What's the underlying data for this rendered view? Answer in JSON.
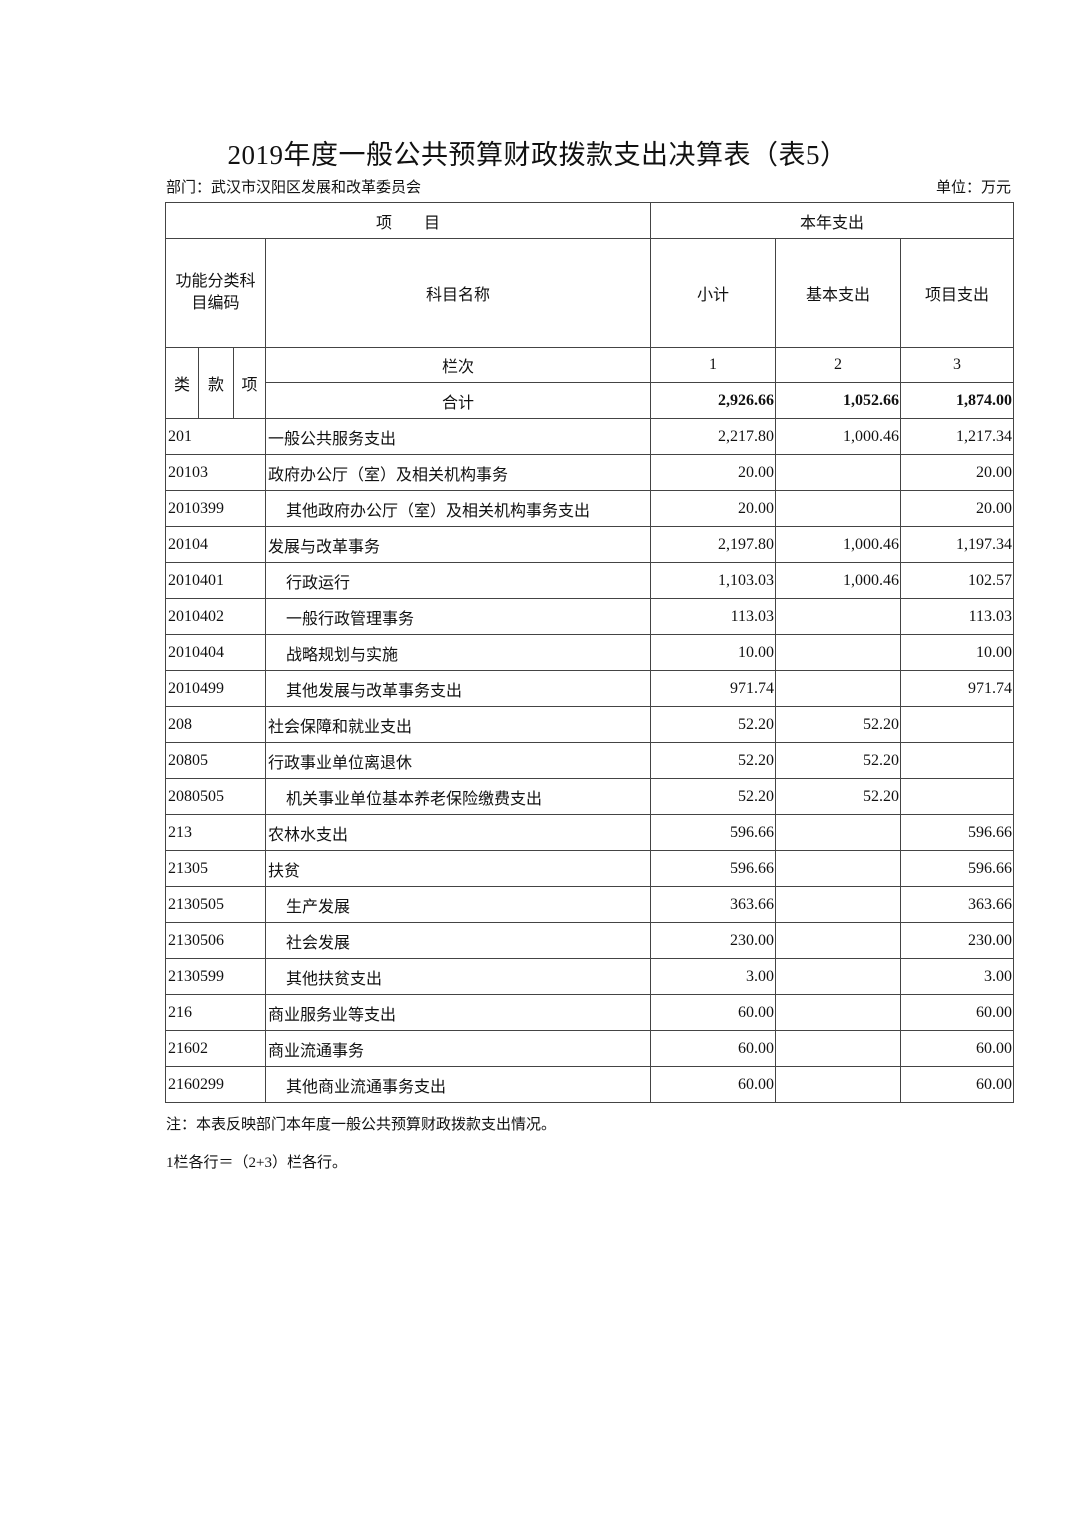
{
  "title": "2019年度一般公共预算财政拨款支出决算表（表5）",
  "department": "部门：武汉市汉阳区发展和改革委员会",
  "unit": "单位：万元",
  "header": {
    "item": "项　　目",
    "current_year": "本年支出",
    "code_label": "功能分类科目编码",
    "name_label": "科目名称",
    "subtotal": "小计",
    "basic": "基本支出",
    "project": "项目支出",
    "lei": "类",
    "kuan": "款",
    "xiang": "项",
    "column_no": "栏次",
    "col1": "1",
    "col2": "2",
    "col3": "3",
    "total_label": "合计",
    "total_subtotal": "2,926.66",
    "total_basic": "1,052.66",
    "total_project": "1,874.00"
  },
  "rows": [
    {
      "code": "201",
      "name": "一般公共服务支出",
      "subtotal": "2,217.80",
      "basic": "1,000.46",
      "project": "1,217.34",
      "indent": false
    },
    {
      "code": "20103",
      "name": "政府办公厅（室）及相关机构事务",
      "subtotal": "20.00",
      "basic": "",
      "project": "20.00",
      "indent": false
    },
    {
      "code": "2010399",
      "name": "其他政府办公厅（室）及相关机构事务支出",
      "subtotal": "20.00",
      "basic": "",
      "project": "20.00",
      "indent": true
    },
    {
      "code": "20104",
      "name": "发展与改革事务",
      "subtotal": "2,197.80",
      "basic": "1,000.46",
      "project": "1,197.34",
      "indent": false
    },
    {
      "code": "2010401",
      "name": "行政运行",
      "subtotal": "1,103.03",
      "basic": "1,000.46",
      "project": "102.57",
      "indent": true
    },
    {
      "code": "2010402",
      "name": "一般行政管理事务",
      "subtotal": "113.03",
      "basic": "",
      "project": "113.03",
      "indent": true
    },
    {
      "code": "2010404",
      "name": "战略规划与实施",
      "subtotal": "10.00",
      "basic": "",
      "project": "10.00",
      "indent": true
    },
    {
      "code": "2010499",
      "name": "其他发展与改革事务支出",
      "subtotal": "971.74",
      "basic": "",
      "project": "971.74",
      "indent": true
    },
    {
      "code": "208",
      "name": "社会保障和就业支出",
      "subtotal": "52.20",
      "basic": "52.20",
      "project": "",
      "indent": false
    },
    {
      "code": "20805",
      "name": "行政事业单位离退休",
      "subtotal": "52.20",
      "basic": "52.20",
      "project": "",
      "indent": false
    },
    {
      "code": "2080505",
      "name": "机关事业单位基本养老保险缴费支出",
      "subtotal": "52.20",
      "basic": "52.20",
      "project": "",
      "indent": true
    },
    {
      "code": "213",
      "name": "农林水支出",
      "subtotal": "596.66",
      "basic": "",
      "project": "596.66",
      "indent": false
    },
    {
      "code": "21305",
      "name": "扶贫",
      "subtotal": "596.66",
      "basic": "",
      "project": "596.66",
      "indent": false
    },
    {
      "code": "2130505",
      "name": "生产发展",
      "subtotal": "363.66",
      "basic": "",
      "project": "363.66",
      "indent": true
    },
    {
      "code": "2130506",
      "name": "社会发展",
      "subtotal": "230.00",
      "basic": "",
      "project": "230.00",
      "indent": true
    },
    {
      "code": "2130599",
      "name": "其他扶贫支出",
      "subtotal": "3.00",
      "basic": "",
      "project": "3.00",
      "indent": true
    },
    {
      "code": "216",
      "name": "商业服务业等支出",
      "subtotal": "60.00",
      "basic": "",
      "project": "60.00",
      "indent": false
    },
    {
      "code": "21602",
      "name": "商业流通事务",
      "subtotal": "60.00",
      "basic": "",
      "project": "60.00",
      "indent": false
    },
    {
      "code": "2160299",
      "name": "其他商业流通事务支出",
      "subtotal": "60.00",
      "basic": "",
      "project": "60.00",
      "indent": true
    }
  ],
  "notes": {
    "line1": "注：本表反映部门本年度一般公共预算财政拨款支出情况。",
    "line2": "1栏各行＝（2+3）栏各行。"
  }
}
